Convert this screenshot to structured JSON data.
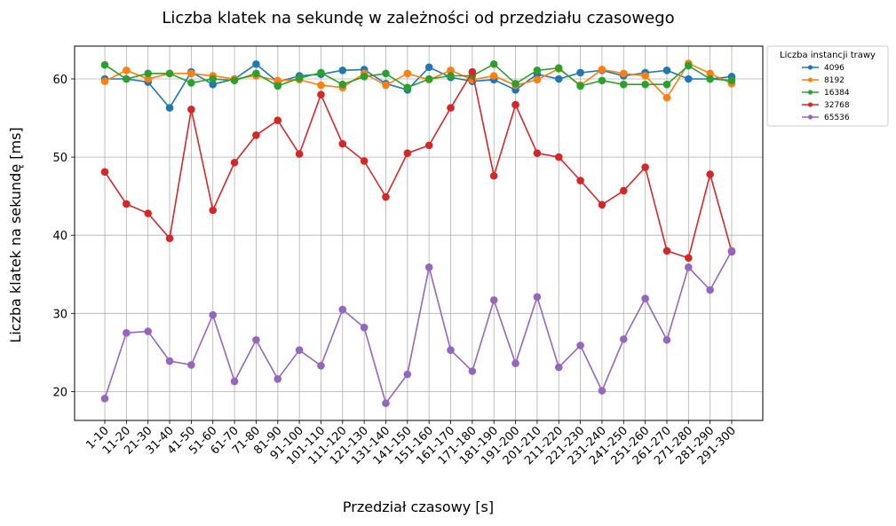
{
  "chart_data": {
    "type": "line",
    "title": "Liczba klatek na sekundę w zależności od przedziału czasowego",
    "xlabel": "Przedział czasowy [s]",
    "ylabel": "Liczba klatek na sekundę [ms]",
    "ylim": [
      16.3,
      64.2
    ],
    "yticks": [
      20,
      30,
      40,
      50,
      60
    ],
    "grid": true,
    "legend_title": "Liczba instancji trawy",
    "legend_placement": "outside-top-right",
    "categories": [
      "1-10",
      "11-20",
      "21-30",
      "31-40",
      "41-50",
      "51-60",
      "61-70",
      "71-80",
      "81-90",
      "91-100",
      "101-110",
      "111-120",
      "121-130",
      "131-140",
      "141-150",
      "151-160",
      "161-170",
      "171-180",
      "181-190",
      "191-200",
      "201-210",
      "211-220",
      "221-230",
      "231-240",
      "241-250",
      "251-260",
      "261-270",
      "271-280",
      "281-290",
      "291-300"
    ],
    "series": [
      {
        "name": "4096",
        "color": "#1f77b4",
        "values": [
          60.0,
          60.0,
          59.6,
          56.3,
          60.9,
          59.3,
          60.0,
          61.9,
          59.6,
          60.4,
          60.6,
          61.1,
          61.2,
          59.4,
          58.6,
          61.5,
          60.2,
          59.7,
          59.9,
          58.6,
          60.6,
          60.0,
          60.8,
          61.1,
          60.4,
          60.8,
          61.1,
          60.0,
          60.0,
          60.3
        ]
      },
      {
        "name": "8192",
        "color": "#ff7f0e",
        "values": [
          59.7,
          61.1,
          60.0,
          60.7,
          60.7,
          60.4,
          60.0,
          60.4,
          59.8,
          59.9,
          59.2,
          58.9,
          60.7,
          59.2,
          60.7,
          59.9,
          61.1,
          59.9,
          60.4,
          59.2,
          59.9,
          61.3,
          59.2,
          61.2,
          60.7,
          60.4,
          57.6,
          62.0,
          60.7,
          59.4
        ]
      },
      {
        "name": "16384",
        "color": "#2ca02c",
        "values": [
          61.8,
          60.0,
          60.7,
          60.7,
          59.5,
          60.0,
          59.8,
          60.7,
          59.1,
          60.1,
          60.8,
          59.3,
          60.3,
          60.7,
          58.9,
          60.0,
          60.4,
          60.4,
          61.9,
          59.4,
          61.1,
          61.4,
          59.1,
          59.8,
          59.3,
          59.3,
          59.3,
          61.7,
          60.0,
          59.8
        ]
      },
      {
        "name": "32768",
        "color": "#d62728",
        "values": [
          48.1,
          44.0,
          42.8,
          39.6,
          56.1,
          43.2,
          49.3,
          52.8,
          54.7,
          50.4,
          58.0,
          51.7,
          49.5,
          44.9,
          50.5,
          51.5,
          56.3,
          60.9,
          47.6,
          56.7,
          50.5,
          50.0,
          47.0,
          43.9,
          45.7,
          48.7,
          38.0,
          37.1,
          47.8,
          37.9
        ]
      },
      {
        "name": "65536",
        "color": "#9467bd",
        "values": [
          19.1,
          27.5,
          27.7,
          23.9,
          23.4,
          29.8,
          21.3,
          26.6,
          21.6,
          25.3,
          23.3,
          30.5,
          28.2,
          18.5,
          22.2,
          35.9,
          25.3,
          22.6,
          31.7,
          23.6,
          32.1,
          23.1,
          25.9,
          20.1,
          26.7,
          31.9,
          26.6,
          35.9,
          33.0,
          38.0
        ]
      }
    ]
  }
}
